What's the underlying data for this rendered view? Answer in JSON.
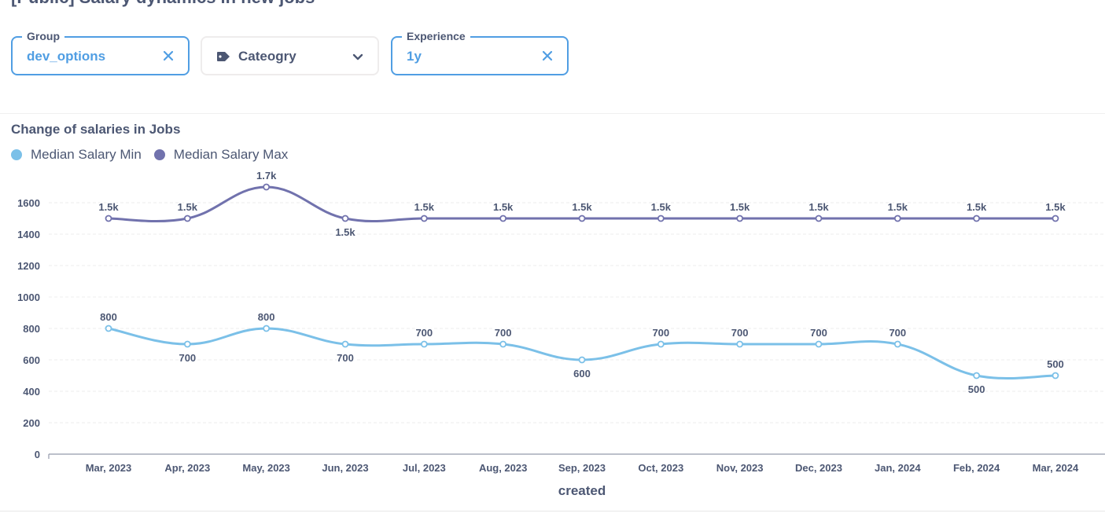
{
  "page": {
    "title": "[Public] Salary dynamics in new jobs"
  },
  "filters": {
    "group": {
      "label": "Group",
      "value": "dev_options"
    },
    "category": {
      "placeholder": "Cateogry"
    },
    "experience": {
      "label": "Experience",
      "value": "1y"
    }
  },
  "colors": {
    "accent": "#509ee3",
    "series_min": "#7bc0e8",
    "series_max": "#7172ad",
    "text": "#4c5773"
  },
  "icons": {
    "clear": "close-icon",
    "category": "tag-icon",
    "dropdown": "chevron-down-icon"
  },
  "card": {
    "title": "Change of salaries in Jobs"
  },
  "chart_data": {
    "type": "line",
    "title": "Change of salaries in Jobs",
    "xlabel": "created",
    "ylabel": "",
    "categories": [
      "Mar, 2023",
      "Apr, 2023",
      "May, 2023",
      "Jun, 2023",
      "Jul, 2023",
      "Aug, 2023",
      "Sep, 2023",
      "Oct, 2023",
      "Nov, 2023",
      "Dec, 2023",
      "Jan, 2024",
      "Feb, 2024",
      "Mar, 2024"
    ],
    "series": [
      {
        "name": "Median Salary Min",
        "color": "#7bc0e8",
        "values": [
          800,
          700,
          800,
          700,
          700,
          700,
          600,
          700,
          700,
          700,
          700,
          500,
          500
        ],
        "labels": [
          "800",
          "700",
          "800",
          "700",
          "700",
          "700",
          "600",
          "700",
          "700",
          "700",
          "700",
          "500",
          "500"
        ]
      },
      {
        "name": "Median Salary Max",
        "color": "#7172ad",
        "values": [
          1500,
          1500,
          1700,
          1500,
          1500,
          1500,
          1500,
          1500,
          1500,
          1500,
          1500,
          1500,
          1500
        ],
        "labels": [
          "1.5k",
          "1.5k",
          "1.7k",
          "1.5k",
          "1.5k",
          "1.5k",
          "1.5k",
          "1.5k",
          "1.5k",
          "1.5k",
          "1.5k",
          "1.5k",
          "1.5k"
        ]
      }
    ],
    "yticks": [
      0,
      200,
      400,
      600,
      800,
      1000,
      1200,
      1400,
      1600
    ],
    "ylim": [
      0,
      1800
    ],
    "grid": true,
    "legend": "top-left"
  }
}
